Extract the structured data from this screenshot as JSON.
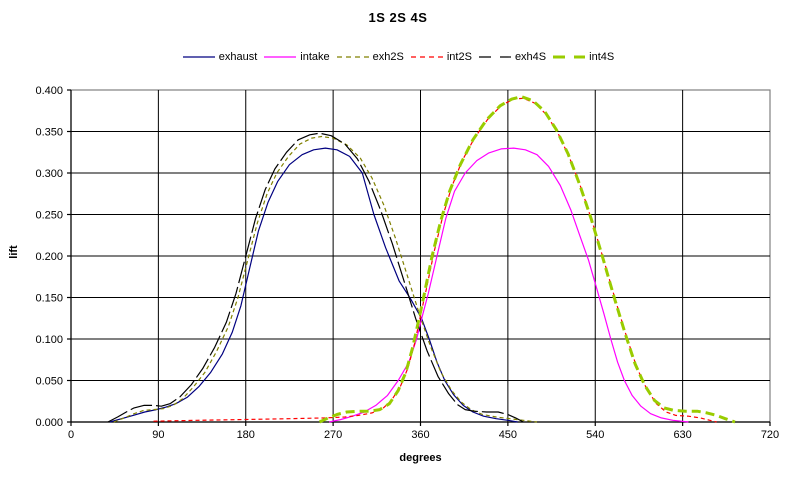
{
  "title": "1S 2S 4S",
  "colors": {
    "background": "#FFFFFF",
    "plot_border": "#808080",
    "gridline": "#000000",
    "axis": "#000000",
    "text": "#000000"
  },
  "chart_data": {
    "type": "line",
    "title": "1S 2S 4S",
    "xlabel": "degrees",
    "ylabel": "lift",
    "xlim": [
      0,
      720
    ],
    "ylim": [
      0,
      0.4
    ],
    "xticks": [
      "0",
      "90",
      "180",
      "270",
      "360",
      "450",
      "540",
      "630",
      "720"
    ],
    "yticks": [
      "0.000",
      "0.050",
      "0.100",
      "0.150",
      "0.200",
      "0.250",
      "0.300",
      "0.350",
      "0.400"
    ],
    "grid": true,
    "legend_position": "top",
    "series": [
      {
        "name": "exhaust",
        "color": "#000080",
        "width": 1.2,
        "dash": null,
        "legend_dash": null,
        "points": [
          [
            40,
            0
          ],
          [
            52,
            0.004
          ],
          [
            64,
            0.008
          ],
          [
            76,
            0.012
          ],
          [
            88,
            0.015
          ],
          [
            98,
            0.018
          ],
          [
            108,
            0.022
          ],
          [
            120,
            0.03
          ],
          [
            132,
            0.043
          ],
          [
            144,
            0.06
          ],
          [
            156,
            0.082
          ],
          [
            166,
            0.108
          ],
          [
            175,
            0.14
          ],
          [
            184,
            0.185
          ],
          [
            193,
            0.23
          ],
          [
            203,
            0.265
          ],
          [
            213,
            0.29
          ],
          [
            225,
            0.31
          ],
          [
            238,
            0.322
          ],
          [
            250,
            0.328
          ],
          [
            262,
            0.33
          ],
          [
            274,
            0.328
          ],
          [
            287,
            0.32
          ],
          [
            300,
            0.3
          ],
          [
            312,
            0.25
          ],
          [
            324,
            0.21
          ],
          [
            338,
            0.17
          ],
          [
            350,
            0.148
          ],
          [
            361,
            0.125
          ],
          [
            369,
            0.1
          ],
          [
            377,
            0.072
          ],
          [
            385,
            0.05
          ],
          [
            394,
            0.033
          ],
          [
            404,
            0.02
          ],
          [
            414,
            0.012
          ],
          [
            425,
            0.007
          ],
          [
            438,
            0.004
          ],
          [
            450,
            0.002
          ],
          [
            460,
            0
          ]
        ]
      },
      {
        "name": "intake",
        "color": "#FF00FF",
        "width": 1.2,
        "dash": null,
        "legend_dash": null,
        "points": [
          [
            266,
            0
          ],
          [
            278,
            0.003
          ],
          [
            290,
            0.007
          ],
          [
            302,
            0.012
          ],
          [
            314,
            0.02
          ],
          [
            326,
            0.032
          ],
          [
            337,
            0.05
          ],
          [
            348,
            0.072
          ],
          [
            356,
            0.1
          ],
          [
            362,
            0.128
          ],
          [
            368,
            0.155
          ],
          [
            377,
            0.2
          ],
          [
            386,
            0.245
          ],
          [
            395,
            0.278
          ],
          [
            406,
            0.3
          ],
          [
            418,
            0.315
          ],
          [
            430,
            0.324
          ],
          [
            443,
            0.329
          ],
          [
            456,
            0.33
          ],
          [
            468,
            0.328
          ],
          [
            480,
            0.322
          ],
          [
            492,
            0.308
          ],
          [
            504,
            0.285
          ],
          [
            515,
            0.255
          ],
          [
            524,
            0.225
          ],
          [
            533,
            0.195
          ],
          [
            541,
            0.163
          ],
          [
            549,
            0.13
          ],
          [
            556,
            0.1
          ],
          [
            563,
            0.072
          ],
          [
            570,
            0.05
          ],
          [
            578,
            0.032
          ],
          [
            587,
            0.019
          ],
          [
            597,
            0.01
          ],
          [
            608,
            0.005
          ],
          [
            620,
            0.002
          ],
          [
            636,
            0
          ]
        ]
      },
      {
        "name": "exh2S",
        "color": "#808000",
        "width": 1.2,
        "dash": "4 3",
        "legend_dash": "5 4",
        "points": [
          [
            44,
            0
          ],
          [
            55,
            0.005
          ],
          [
            65,
            0.01
          ],
          [
            75,
            0.014
          ],
          [
            85,
            0.015
          ],
          [
            95,
            0.016
          ],
          [
            105,
            0.02
          ],
          [
            115,
            0.028
          ],
          [
            126,
            0.042
          ],
          [
            138,
            0.06
          ],
          [
            150,
            0.085
          ],
          [
            162,
            0.115
          ],
          [
            172,
            0.15
          ],
          [
            182,
            0.195
          ],
          [
            192,
            0.24
          ],
          [
            202,
            0.275
          ],
          [
            212,
            0.3
          ],
          [
            224,
            0.32
          ],
          [
            236,
            0.335
          ],
          [
            248,
            0.342
          ],
          [
            258,
            0.344
          ],
          [
            270,
            0.342
          ],
          [
            284,
            0.334
          ],
          [
            298,
            0.318
          ],
          [
            310,
            0.294
          ],
          [
            322,
            0.262
          ],
          [
            334,
            0.222
          ],
          [
            346,
            0.178
          ],
          [
            358,
            0.133
          ],
          [
            370,
            0.092
          ],
          [
            381,
            0.06
          ],
          [
            392,
            0.038
          ],
          [
            402,
            0.024
          ],
          [
            412,
            0.015
          ],
          [
            424,
            0.009
          ],
          [
            438,
            0.006
          ],
          [
            452,
            0.004
          ],
          [
            466,
            0.002
          ],
          [
            480,
            0
          ]
        ]
      },
      {
        "name": "int2S",
        "color": "#FF0000",
        "width": 1.2,
        "dash": "4 3",
        "legend_dash": "5 4",
        "points": [
          [
            85,
            0.001
          ],
          [
            130,
            0.002
          ],
          [
            180,
            0.003
          ],
          [
            225,
            0.004
          ],
          [
            262,
            0.005
          ],
          [
            282,
            0.006
          ],
          [
            296,
            0.008
          ],
          [
            310,
            0.011
          ],
          [
            321,
            0.016
          ],
          [
            330,
            0.026
          ],
          [
            339,
            0.042
          ],
          [
            347,
            0.065
          ],
          [
            354,
            0.095
          ],
          [
            360,
            0.128
          ],
          [
            366,
            0.16
          ],
          [
            374,
            0.205
          ],
          [
            383,
            0.248
          ],
          [
            392,
            0.283
          ],
          [
            403,
            0.315
          ],
          [
            416,
            0.343
          ],
          [
            430,
            0.366
          ],
          [
            444,
            0.382
          ],
          [
            456,
            0.389
          ],
          [
            466,
            0.39
          ],
          [
            478,
            0.384
          ],
          [
            490,
            0.37
          ],
          [
            502,
            0.347
          ],
          [
            514,
            0.317
          ],
          [
            526,
            0.28
          ],
          [
            538,
            0.237
          ],
          [
            550,
            0.19
          ],
          [
            562,
            0.142
          ],
          [
            573,
            0.1
          ],
          [
            583,
            0.065
          ],
          [
            593,
            0.04
          ],
          [
            603,
            0.022
          ],
          [
            613,
            0.012
          ],
          [
            623,
            0.008
          ],
          [
            636,
            0.007
          ],
          [
            648,
            0.005
          ],
          [
            658,
            0.002
          ],
          [
            665,
            0
          ]
        ]
      },
      {
        "name": "exh4S",
        "color": "#000000",
        "width": 1.2,
        "dash": "22 4",
        "legend_dash": "12 9",
        "points": [
          [
            38,
            0
          ],
          [
            48,
            0.006
          ],
          [
            57,
            0.012
          ],
          [
            65,
            0.017
          ],
          [
            75,
            0.02
          ],
          [
            85,
            0.02
          ],
          [
            93,
            0.019
          ],
          [
            102,
            0.022
          ],
          [
            112,
            0.03
          ],
          [
            124,
            0.045
          ],
          [
            136,
            0.065
          ],
          [
            148,
            0.09
          ],
          [
            160,
            0.12
          ],
          [
            170,
            0.155
          ],
          [
            180,
            0.2
          ],
          [
            190,
            0.245
          ],
          [
            200,
            0.28
          ],
          [
            210,
            0.305
          ],
          [
            222,
            0.325
          ],
          [
            234,
            0.34
          ],
          [
            246,
            0.346
          ],
          [
            256,
            0.348
          ],
          [
            268,
            0.345
          ],
          [
            282,
            0.335
          ],
          [
            295,
            0.317
          ],
          [
            307,
            0.29
          ],
          [
            319,
            0.255
          ],
          [
            331,
            0.215
          ],
          [
            343,
            0.17
          ],
          [
            355,
            0.125
          ],
          [
            367,
            0.085
          ],
          [
            378,
            0.055
          ],
          [
            389,
            0.034
          ],
          [
            398,
            0.021
          ],
          [
            406,
            0.015
          ],
          [
            415,
            0.013
          ],
          [
            428,
            0.012
          ],
          [
            440,
            0.012
          ],
          [
            450,
            0.009
          ],
          [
            458,
            0.005
          ],
          [
            466,
            0
          ]
        ]
      },
      {
        "name": "int4S",
        "color": "#99CC00",
        "width": 3,
        "dash": "9 5",
        "legend_dash": "12 9",
        "points": [
          [
            256,
            0
          ],
          [
            265,
            0.005
          ],
          [
            274,
            0.009
          ],
          [
            284,
            0.012
          ],
          [
            296,
            0.013
          ],
          [
            308,
            0.013
          ],
          [
            318,
            0.015
          ],
          [
            328,
            0.022
          ],
          [
            337,
            0.038
          ],
          [
            345,
            0.06
          ],
          [
            352,
            0.09
          ],
          [
            358,
            0.122
          ],
          [
            364,
            0.155
          ],
          [
            372,
            0.2
          ],
          [
            381,
            0.243
          ],
          [
            390,
            0.278
          ],
          [
            401,
            0.31
          ],
          [
            414,
            0.34
          ],
          [
            428,
            0.364
          ],
          [
            442,
            0.381
          ],
          [
            454,
            0.389
          ],
          [
            464,
            0.392
          ],
          [
            476,
            0.387
          ],
          [
            488,
            0.374
          ],
          [
            500,
            0.352
          ],
          [
            512,
            0.323
          ],
          [
            524,
            0.286
          ],
          [
            536,
            0.244
          ],
          [
            548,
            0.197
          ],
          [
            560,
            0.148
          ],
          [
            571,
            0.106
          ],
          [
            581,
            0.07
          ],
          [
            591,
            0.044
          ],
          [
            601,
            0.026
          ],
          [
            611,
            0.017
          ],
          [
            621,
            0.014
          ],
          [
            633,
            0.013
          ],
          [
            645,
            0.013
          ],
          [
            655,
            0.011
          ],
          [
            665,
            0.008
          ],
          [
            674,
            0.004
          ],
          [
            684,
            0
          ]
        ]
      }
    ]
  }
}
